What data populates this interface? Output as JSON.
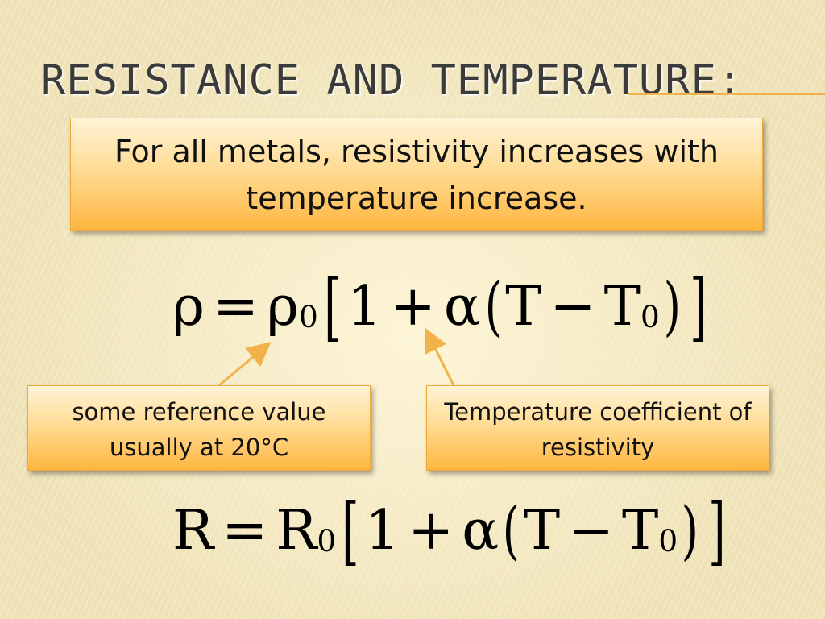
{
  "slide": {
    "title": "RESISTANCE AND TEMPERATURE:",
    "statement": "For all metals, resistivity increases with temperature increase.",
    "callout_reference": "some reference value usually at 20°C",
    "callout_coefficient": "Temperature coefficient of resistivity",
    "equation_resistivity": {
      "lhs": "ρ",
      "eq": "=",
      "rho": "ρ",
      "sub0": "0",
      "lbr": "[",
      "one": "1",
      "plus": "+",
      "alpha": "α",
      "lp": "(",
      "T": "T",
      "minus": "−",
      "T2": "T",
      "sub0b": "0",
      "rp": ")",
      "rbr": "]"
    },
    "equation_resistance": {
      "lhs": "R",
      "eq": "=",
      "R": "R",
      "sub0": "0",
      "lbr": "[",
      "one": "1",
      "plus": "+",
      "alpha": "α",
      "lp": "(",
      "T": "T",
      "minus": "−",
      "T2": "T",
      "sub0b": "0",
      "rp": ")",
      "rbr": "]"
    },
    "colors": {
      "accent": "#f2b24a",
      "box_top": "#fff4d6",
      "box_bottom": "#ffb640",
      "title": "#3b3b3b"
    }
  }
}
